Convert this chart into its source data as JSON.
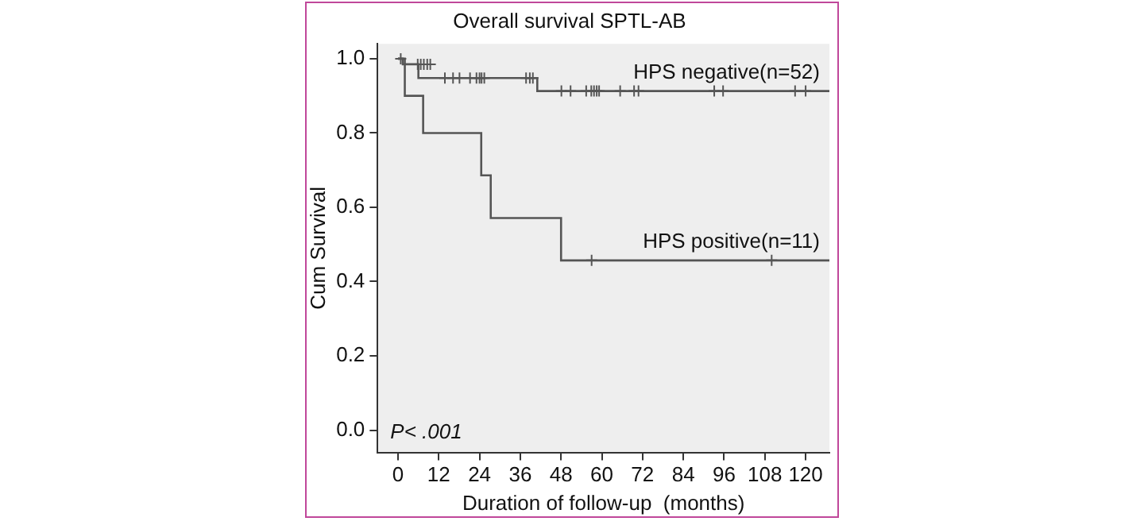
{
  "chart_data": {
    "type": "step",
    "title": "Overall survival SPTL-AB",
    "xlabel": "Duration of follow-up  (months)",
    "ylabel": "Cum Survival",
    "series": [
      {
        "name": "HPS negative(n=52)",
        "color": "#555555",
        "x": [
          0,
          1.4,
          6,
          41,
          127
        ],
        "values": [
          1,
          0.985,
          0.948,
          0.913,
          0.913
        ]
      },
      {
        "name": "HPS positive(n=11)",
        "color": "#555555",
        "x": [
          0,
          2,
          7.4,
          24.5,
          27.3,
          48,
          127
        ],
        "values": [
          1,
          0.9,
          0.8,
          0.686,
          0.571,
          0.457,
          0.457
        ]
      },
      {
        "type": "scatter",
        "marker": "cross",
        "color": "#555555",
        "x": [
          0.8,
          5.8,
          6.7,
          7.6,
          8.6,
          9.5,
          13.8,
          16.2,
          18.1,
          21.2,
          23.1,
          24,
          24.6,
          25.4,
          37.7,
          38.8,
          39.7,
          48.1,
          50.8,
          55.4,
          56.9,
          57.7,
          58.5,
          59.2,
          65.4,
          69.5,
          70.8,
          93.1,
          95.7,
          116.9,
          120
        ],
        "values": [
          1,
          0.985,
          0.985,
          0.985,
          0.985,
          0.985,
          0.948,
          0.948,
          0.948,
          0.948,
          0.948,
          0.948,
          0.948,
          0.948,
          0.948,
          0.948,
          0.948,
          0.913,
          0.913,
          0.913,
          0.913,
          0.913,
          0.913,
          0.913,
          0.913,
          0.913,
          0.913,
          0.913,
          0.913,
          0.913,
          0.913
        ]
      },
      {
        "type": "scatter",
        "marker": "cross",
        "color": "#555555",
        "x": [
          57,
          110
        ],
        "values": [
          0.457,
          0.457
        ]
      }
    ],
    "xlim": [
      -6,
      127
    ],
    "xticks": [
      0,
      12,
      24,
      36,
      48,
      60,
      72,
      84,
      96,
      108,
      120
    ],
    "ylim": [
      -0.06,
      1.04
    ],
    "yticks": [
      {
        "value": 0,
        "label": "0.0"
      },
      {
        "value": 0.2,
        "label": "0.2"
      },
      {
        "value": 0.4,
        "label": "0.4"
      },
      {
        "value": 0.6,
        "label": "0.6"
      },
      {
        "value": 0.8,
        "label": "0.8"
      },
      {
        "value": 1,
        "label": "1.0"
      }
    ],
    "annotations": [
      "P< .001"
    ],
    "grid": false,
    "legend": false
  }
}
